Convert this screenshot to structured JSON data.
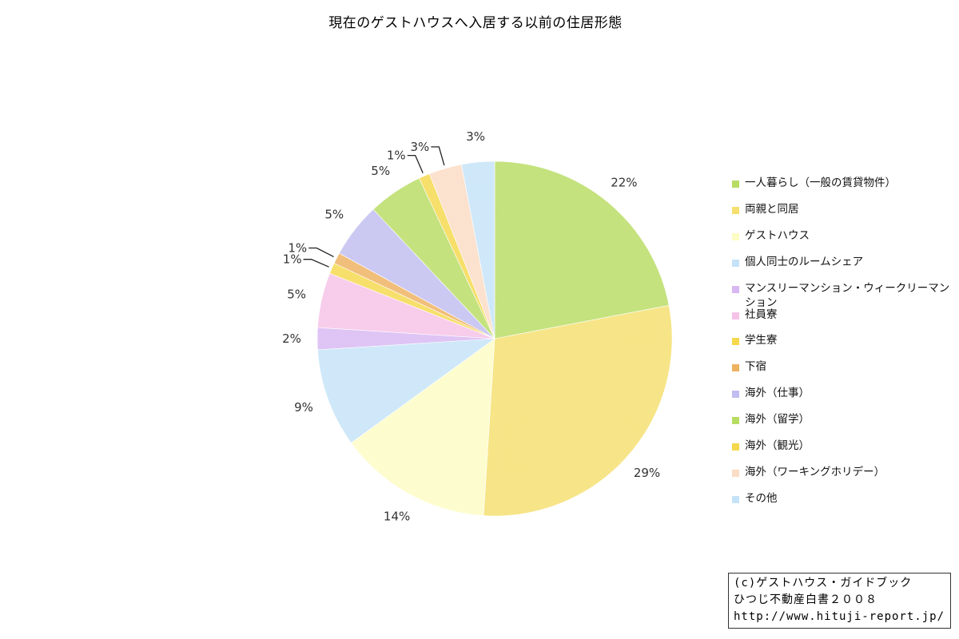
{
  "title": "現在のゲストハウスへ入居する以前の住居形態",
  "chart_data": {
    "type": "pie",
    "slices": [
      {
        "label": "一人暮らし（一般の賃貸物件）",
        "value": 22,
        "display": "22%",
        "color": "#b8dc63"
      },
      {
        "label": "両親と同居",
        "value": 29,
        "display": "29%",
        "color": "#f5df6e"
      },
      {
        "label": "ゲストハウス",
        "value": 14,
        "display": "14%",
        "color": "#fdfcc4"
      },
      {
        "label": "個人同士のルームシェア",
        "value": 9,
        "display": "9%",
        "color": "#c5e3f8"
      },
      {
        "label": "マンスリーマンション・ウィークリーマンション",
        "value": 2,
        "display": "2%",
        "color": "#d7b8f2"
      },
      {
        "label": "社員寮",
        "value": 5,
        "display": "5%",
        "color": "#f6c2e7"
      },
      {
        "label": "学生寮",
        "value": 1,
        "display": "1%",
        "color": "#f5d84c"
      },
      {
        "label": "下宿",
        "value": 1,
        "display": "1%",
        "color": "#eeb15f"
      },
      {
        "label": "海外（仕事）",
        "value": 5,
        "display": "5%",
        "color": "#c0bdf0"
      },
      {
        "label": "海外（留学）",
        "value": 5,
        "display": "5%",
        "color": "#b8dc63"
      },
      {
        "label": "海外（観光）",
        "value": 1,
        "display": "1%",
        "color": "#f5d84c"
      },
      {
        "label": "海外（ワーキングホリデー）",
        "value": 3,
        "display": "3%",
        "color": "#fbdcc4"
      },
      {
        "label": "その他",
        "value": 3,
        "display": "3%",
        "color": "#c5e3f8"
      }
    ],
    "legend_position": "right"
  },
  "credit": {
    "line1": "(c)ゲストハウス・ガイドブック",
    "line2": "ひつじ不動産白書２００８",
    "line3": "http://www.hituji-report.jp/"
  }
}
